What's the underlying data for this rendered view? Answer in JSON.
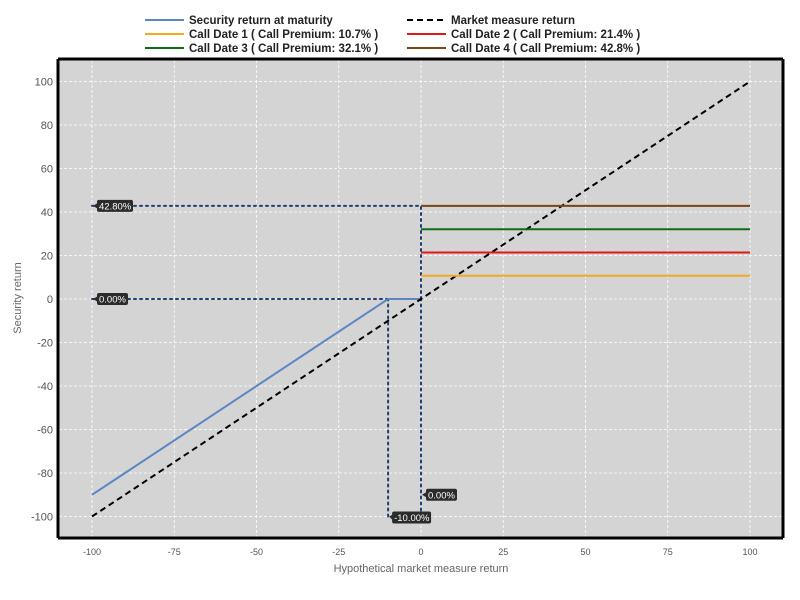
{
  "chart_data": {
    "type": "line",
    "title": "",
    "xlabel": "Hypothetical market measure return",
    "ylabel": "Security return",
    "xlim": [
      -100,
      100
    ],
    "ylim": [
      -110,
      110
    ],
    "xticks": [
      -100,
      -75,
      -50,
      -25,
      0,
      25,
      50,
      75,
      100
    ],
    "yticks": [
      -100,
      -80,
      -60,
      -40,
      -20,
      0,
      20,
      40,
      60,
      80,
      100
    ],
    "grid": true,
    "legend_position": "top",
    "series": [
      {
        "name": "Security return at maturity",
        "color": "#5b86c5",
        "dash": "solid",
        "x": [
          -100,
          -10,
          0
        ],
        "y": [
          -90,
          0,
          0
        ]
      },
      {
        "name": "Market measure return",
        "color": "#000000",
        "dash": "dashed",
        "x": [
          -100,
          100
        ],
        "y": [
          -100,
          100
        ]
      },
      {
        "name": "Call Date 1 ( Call Premium: 10.7% )",
        "color": "#f2a91c",
        "dash": "solid",
        "x": [
          0,
          100
        ],
        "y": [
          10.7,
          10.7
        ]
      },
      {
        "name": "Call Date 2 ( Call Premium: 21.4% )",
        "color": "#e01818",
        "dash": "solid",
        "x": [
          0,
          100
        ],
        "y": [
          21.4,
          21.4
        ]
      },
      {
        "name": "Call Date 3 ( Call Premium: 32.1% )",
        "color": "#0f6d17",
        "dash": "solid",
        "x": [
          0,
          100
        ],
        "y": [
          32.1,
          32.1
        ]
      },
      {
        "name": "Call Date 4 ( Call Premium: 42.8% )",
        "color": "#7b4413",
        "dash": "solid",
        "x": [
          0,
          100
        ],
        "y": [
          42.8,
          42.8
        ]
      }
    ],
    "reference_lines": [
      {
        "color": "#1f3f73",
        "x": [
          -100,
          0
        ],
        "y": [
          42.8,
          42.8
        ]
      },
      {
        "color": "#1f3f73",
        "x": [
          0,
          0
        ],
        "y": [
          0,
          42.8
        ]
      },
      {
        "color": "#1f3f73",
        "x": [
          -100,
          -10
        ],
        "y": [
          0,
          0
        ]
      },
      {
        "color": "#1f3f73",
        "x": [
          -10,
          -10
        ],
        "y": [
          -100,
          0
        ]
      },
      {
        "color": "#1f3f73",
        "x": [
          0,
          0
        ],
        "y": [
          -100,
          0
        ]
      }
    ],
    "annotations": [
      {
        "text": "42.80%",
        "x": -100,
        "y": 42.8
      },
      {
        "text": "0.00%",
        "x": -100,
        "y": 0
      },
      {
        "text": "0.00%",
        "x": 0,
        "y": -90
      },
      {
        "text": "-10.00%",
        "x": -10,
        "y": -100
      }
    ]
  }
}
